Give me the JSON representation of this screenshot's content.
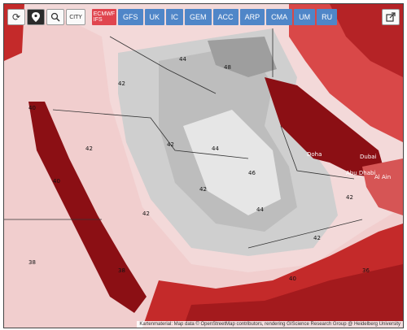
{
  "toolbar": {
    "refresh_icon": "refresh-icon",
    "pin_icon": "map-pin-icon",
    "zoom_icon": "zoom-in-icon",
    "grid_label": "CITY"
  },
  "models": [
    {
      "label": "ECMWF IFS",
      "active": true
    },
    {
      "label": "GFS"
    },
    {
      "label": "UK"
    },
    {
      "label": "IC"
    },
    {
      "label": "GEM"
    },
    {
      "label": "ACC"
    },
    {
      "label": "ARP"
    },
    {
      "label": "CMA"
    },
    {
      "label": "UM"
    },
    {
      "label": "RU"
    }
  ],
  "share_icon": "share-icon",
  "cities": {
    "doha": "Doha",
    "dubai": "Dubai",
    "abu_dhabi": "Abu Dhabi",
    "al_ain": "Al Ain"
  },
  "temps": {
    "t44": "44",
    "t42": "42",
    "t40": "40",
    "t38": "38",
    "t46": "46",
    "t48": "48",
    "t36": "36"
  },
  "attribution": "Kartenmaterial: Map data © OpenStreetMap contributors, rendering GIScience Research Group @ Heidelberg University",
  "colors": {
    "active_model": "#e0454e",
    "model": "#4f86c8",
    "hot": "#8b0f14",
    "very_hot": "#c42a2a"
  }
}
